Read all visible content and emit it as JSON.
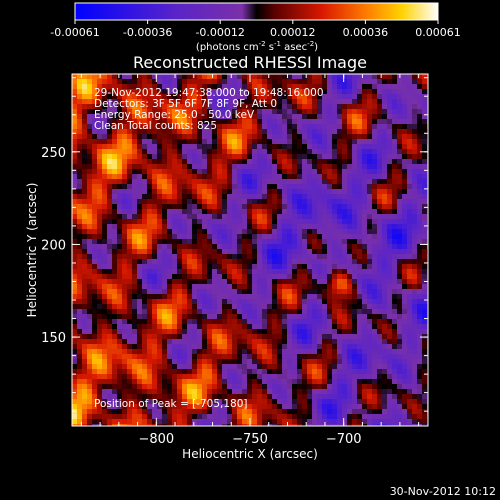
{
  "chart_data": {
    "type": "heatmap",
    "title": "Reconstructed RHESSI Image",
    "colorbar": {
      "min": -0.00061,
      "max": 0.00061,
      "tick_labels": [
        "-0.00061",
        "-0.00036",
        "-0.00012",
        "0.00012",
        "0.00036",
        "0.00061"
      ],
      "units_text": "(photons cm",
      "units_exp1": "-2",
      "units_mid": " s",
      "units_exp2": "-1",
      "units_mid2": " asec",
      "units_exp3": "-2",
      "units_end": ")"
    },
    "xlabel": "Heliocentric X (arcsec)",
    "ylabel": "Heliocentric Y (arcsec)",
    "xlim": [
      -845,
      -655
    ],
    "ylim": [
      102,
      292
    ],
    "xticks": [
      -800,
      -750,
      -700
    ],
    "xtick_labels": [
      "−800",
      "−750",
      "−700"
    ],
    "yticks": [
      150,
      200,
      250
    ],
    "ytick_labels": [
      "150",
      "200",
      "250"
    ],
    "info_lines": [
      "29-Nov-2012 19:47:38.000 to 19:48:16.000",
      "Detectors: 3F 5F 6F 7F 8F 9F, Att 0",
      "Energy Range: 25.0 - 50.0 keV",
      "Clean     Total counts: 825"
    ],
    "peak_label": "Position of Peak = [-705,180]",
    "peak": [
      -705,
      180
    ],
    "colormap": "blue-purple-red-yellow-white"
  },
  "footer": {
    "timestamp": "30-Nov-2012 10:12"
  }
}
